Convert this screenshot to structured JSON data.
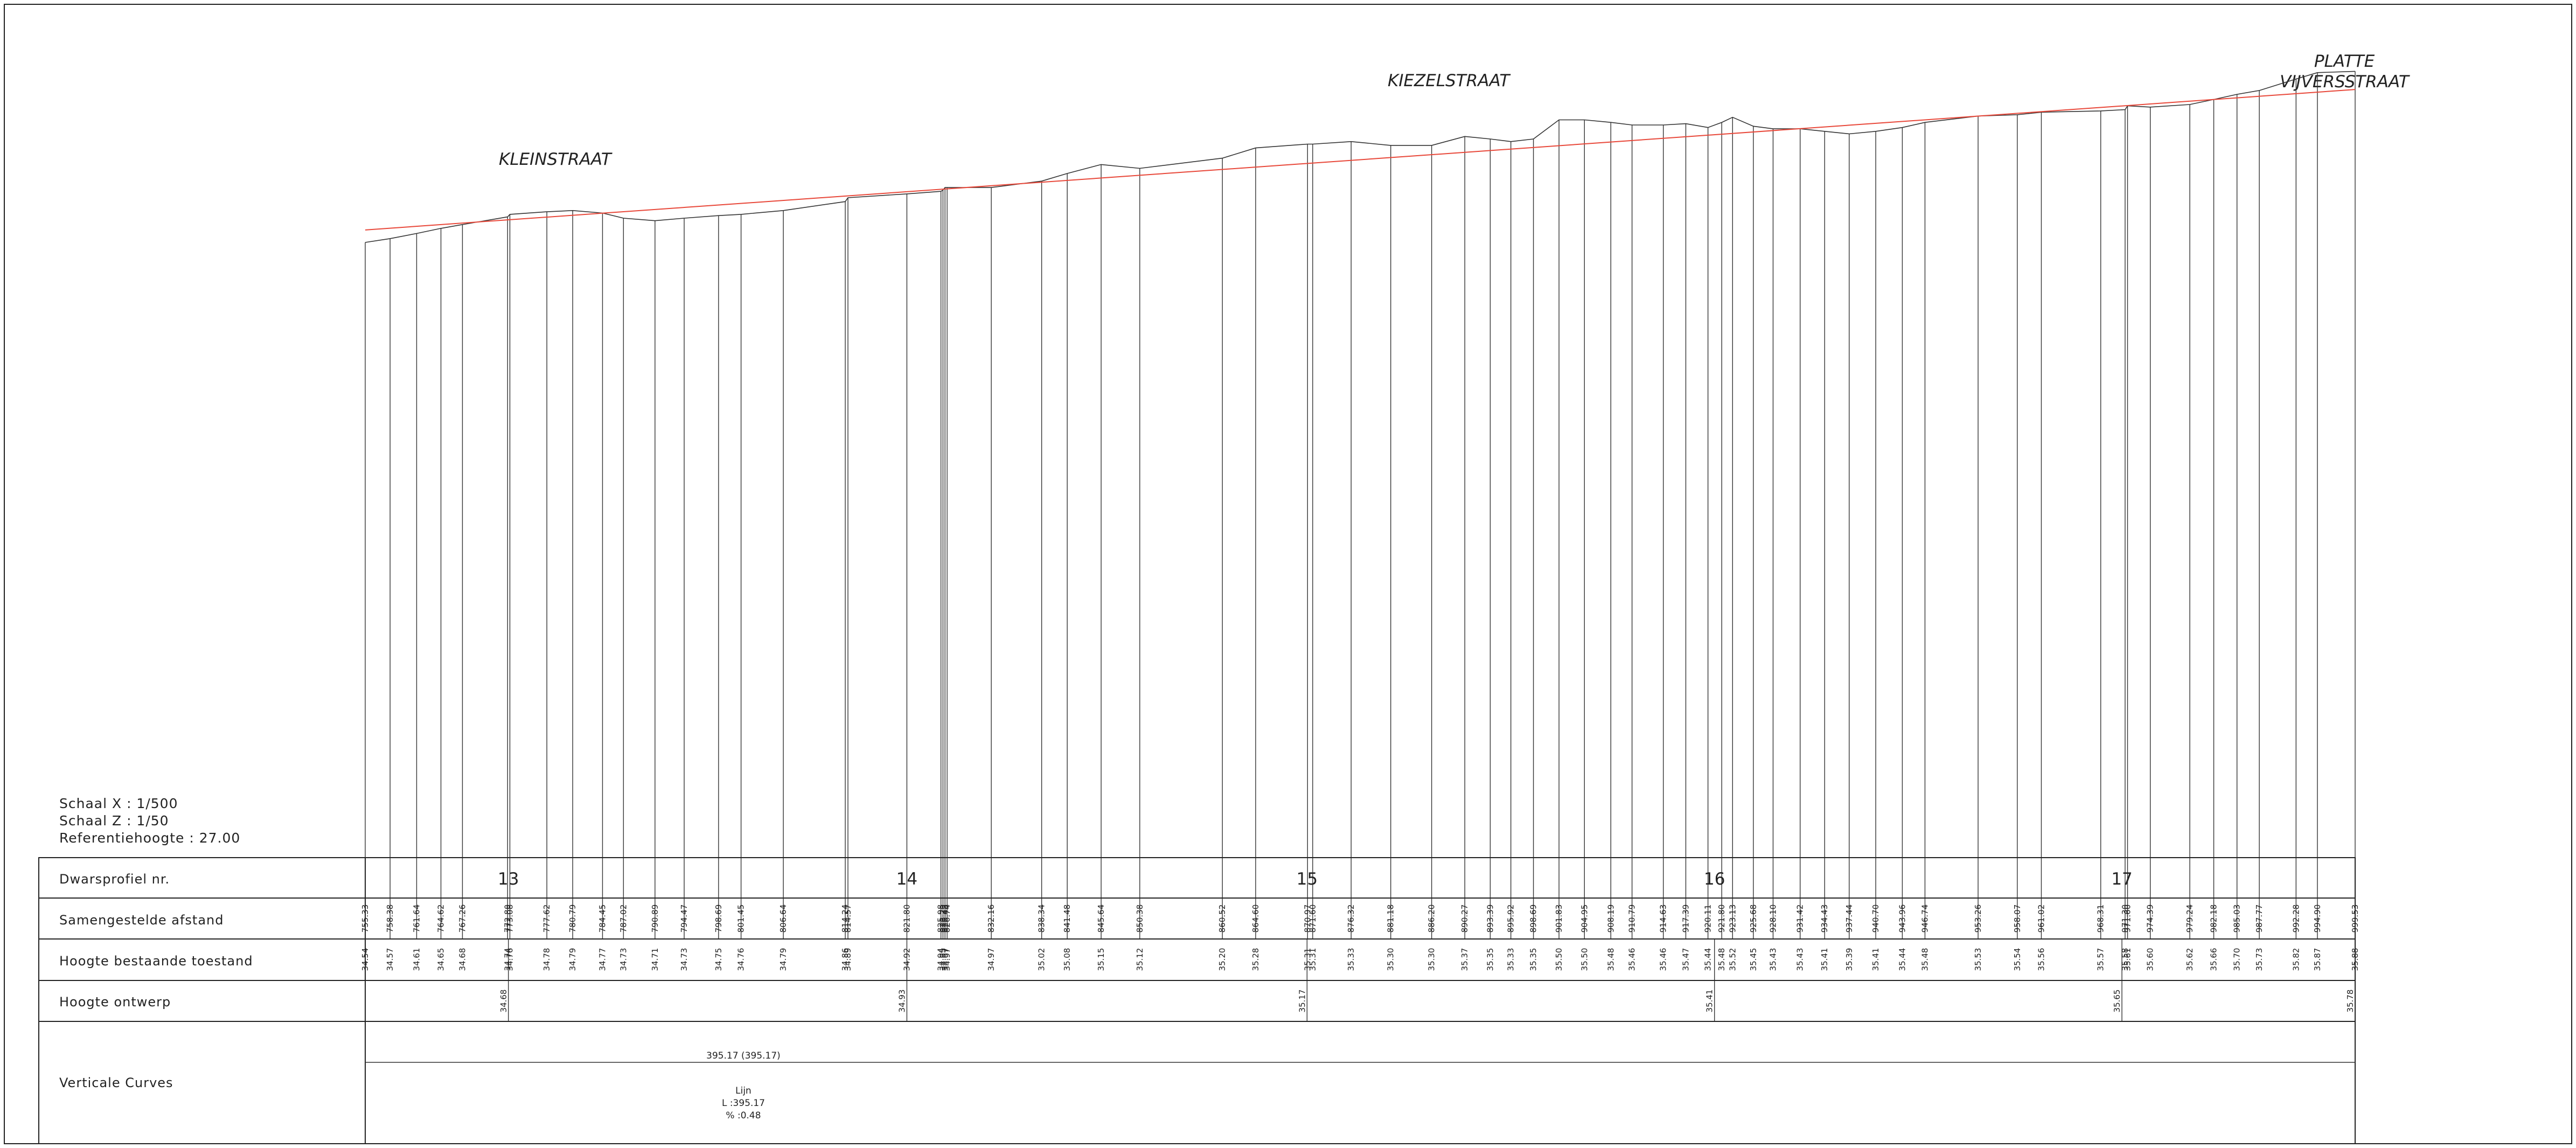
{
  "streets": {
    "kleinstraat": "KLEINSTRAAT",
    "kiezelstraat": "KIEZELSTRAAT",
    "platte_line1": "PLATTE",
    "platte_line2": "VIJVERSSTRAAT"
  },
  "scale": {
    "x": "Schaal X : 1/500",
    "z": "Schaal Z : 1/50",
    "ref": "Referentiehoogte : 27.00"
  },
  "rows": {
    "profile": "Dwarsprofiel nr.",
    "distance": "Samengestelde afstand",
    "existing": "Hoogte bestaande toestand",
    "design": "Hoogte ontwerp",
    "curves": "Verticale Curves"
  },
  "colors": {
    "terrain": "#333333",
    "design_line": "#e8483a",
    "frame": "#222222"
  },
  "chart_data": {
    "type": "line",
    "x_unit": "samengestelde afstand",
    "reference_height": 27.0,
    "profile_numbers": [
      {
        "label": "13",
        "station": 772.9
      },
      {
        "label": "14",
        "station": 821.8
      },
      {
        "label": "15",
        "station": 870.91
      },
      {
        "label": "16",
        "station": 920.91
      },
      {
        "label": "17",
        "station": 970.91
      }
    ],
    "stations": [
      {
        "d": "755.33",
        "h": "34.54"
      },
      {
        "d": "758.38",
        "h": "34.57"
      },
      {
        "d": "761.64",
        "h": "34.61"
      },
      {
        "d": "764.62",
        "h": "34.65"
      },
      {
        "d": "767.26",
        "h": "34.68"
      },
      {
        "d": "772.80",
        "h": "34.74"
      },
      {
        "d": "773.08",
        "h": "34.76"
      },
      {
        "d": "777.62",
        "h": "34.78"
      },
      {
        "d": "780.79",
        "h": "34.79"
      },
      {
        "d": "784.45",
        "h": "34.77"
      },
      {
        "d": "787.02",
        "h": "34.73"
      },
      {
        "d": "790.89",
        "h": "34.71"
      },
      {
        "d": "794.47",
        "h": "34.73"
      },
      {
        "d": "798.69",
        "h": "34.75"
      },
      {
        "d": "801.45",
        "h": "34.76"
      },
      {
        "d": "806.64",
        "h": "34.79"
      },
      {
        "d": "814.24",
        "h": "34.86"
      },
      {
        "d": "814.57",
        "h": "34.89"
      },
      {
        "d": "821.80",
        "h": "34.92"
      },
      {
        "d": "825.98",
        "h": "34.94"
      },
      {
        "d": "826.23",
        "h": "34.95"
      },
      {
        "d": "826.48",
        "h": "34.97"
      },
      {
        "d": "826.74",
        "h": "34.97"
      },
      {
        "d": "832.16",
        "h": "34.97"
      },
      {
        "d": "838.34",
        "h": "35.02"
      },
      {
        "d": "841.48",
        "h": "35.08"
      },
      {
        "d": "845.64",
        "h": "35.15"
      },
      {
        "d": "850.38",
        "h": "35.12"
      },
      {
        "d": "860.52",
        "h": "35.20"
      },
      {
        "d": "864.60",
        "h": "35.28"
      },
      {
        "d": "870.97",
        "h": "35.31"
      },
      {
        "d": "871.60",
        "h": "35.31"
      },
      {
        "d": "876.32",
        "h": "35.33"
      },
      {
        "d": "881.18",
        "h": "35.30"
      },
      {
        "d": "886.20",
        "h": "35.30"
      },
      {
        "d": "890.27",
        "h": "35.37"
      },
      {
        "d": "893.39",
        "h": "35.35"
      },
      {
        "d": "895.92",
        "h": "35.33"
      },
      {
        "d": "898.69",
        "h": "35.35"
      },
      {
        "d": "901.83",
        "h": "35.50"
      },
      {
        "d": "904.95",
        "h": "35.50"
      },
      {
        "d": "908.19",
        "h": "35.48"
      },
      {
        "d": "910.79",
        "h": "35.46"
      },
      {
        "d": "914.63",
        "h": "35.46"
      },
      {
        "d": "917.39",
        "h": "35.47"
      },
      {
        "d": "920.11",
        "h": "35.44"
      },
      {
        "d": "921.80",
        "h": "35.48"
      },
      {
        "d": "923.13",
        "h": "35.52"
      },
      {
        "d": "925.68",
        "h": "35.45"
      },
      {
        "d": "928.10",
        "h": "35.43"
      },
      {
        "d": "931.42",
        "h": "35.43"
      },
      {
        "d": "934.43",
        "h": "35.41"
      },
      {
        "d": "937.44",
        "h": "35.39"
      },
      {
        "d": "940.70",
        "h": "35.41"
      },
      {
        "d": "943.96",
        "h": "35.44"
      },
      {
        "d": "946.74",
        "h": "35.48"
      },
      {
        "d": "953.26",
        "h": "35.53"
      },
      {
        "d": "958.07",
        "h": "35.54"
      },
      {
        "d": "961.02",
        "h": "35.56"
      },
      {
        "d": "968.31",
        "h": "35.57"
      },
      {
        "d": "971.30",
        "h": "35.58"
      },
      {
        "d": "971.60",
        "h": "35.61"
      },
      {
        "d": "974.39",
        "h": "35.60"
      },
      {
        "d": "979.24",
        "h": "35.62"
      },
      {
        "d": "982.18",
        "h": "35.66"
      },
      {
        "d": "985.03",
        "h": "35.70"
      },
      {
        "d": "987.77",
        "h": "35.73"
      },
      {
        "d": "992.28",
        "h": "35.82"
      },
      {
        "d": "994.90",
        "h": "35.87"
      },
      {
        "d": "999.53",
        "h": "35.88"
      }
    ],
    "design_heights": [
      {
        "station": 772.9,
        "h": "34.68"
      },
      {
        "station": 821.8,
        "h": "34.93"
      },
      {
        "station": 870.91,
        "h": "35.17"
      },
      {
        "station": 920.91,
        "h": "35.41"
      },
      {
        "station": 970.91,
        "h": "35.65"
      },
      {
        "station": 999.53,
        "h": "35.78"
      }
    ],
    "vertical_curve": {
      "length_label": "395.17 (395.17)",
      "type_label": "Lijn",
      "l_label": "L :395.17",
      "slope_label": "% :0.48"
    }
  }
}
